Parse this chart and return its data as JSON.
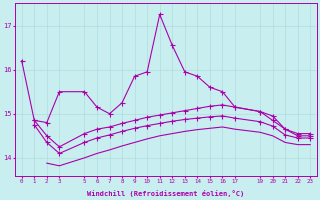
{
  "xlabel": "Windchill (Refroidissement éolien,°C)",
  "bg_color": "#c8eef0",
  "line_color": "#aa00aa",
  "grid_color": "#b0dde0",
  "xlim": [
    -0.5,
    23.5
  ],
  "ylim": [
    13.6,
    17.5
  ],
  "yticks": [
    14,
    15,
    16,
    17
  ],
  "xticks": [
    0,
    1,
    2,
    3,
    5,
    6,
    7,
    8,
    9,
    10,
    11,
    12,
    13,
    14,
    15,
    16,
    17,
    19,
    20,
    21,
    22,
    23
  ],
  "line1_x": [
    0,
    1,
    2,
    3,
    5,
    6,
    7,
    8,
    9,
    10,
    11,
    12,
    13,
    14,
    15,
    16,
    17,
    19,
    20,
    21,
    22,
    23
  ],
  "line1_y": [
    16.2,
    14.85,
    14.8,
    15.5,
    15.5,
    15.15,
    15.0,
    15.25,
    15.85,
    15.95,
    17.25,
    16.55,
    15.95,
    15.85,
    15.6,
    15.5,
    15.15,
    15.05,
    14.85,
    14.65,
    14.5,
    14.5
  ],
  "line2_x": [
    1,
    2,
    3,
    5,
    6,
    7,
    8,
    9,
    10,
    11,
    12,
    13,
    14,
    15,
    16,
    17,
    19,
    20,
    21,
    22,
    23
  ],
  "line2_y": [
    14.85,
    14.5,
    14.25,
    14.55,
    14.65,
    14.7,
    14.78,
    14.85,
    14.92,
    14.97,
    15.02,
    15.07,
    15.12,
    15.17,
    15.2,
    15.15,
    15.05,
    14.95,
    14.65,
    14.55,
    14.55
  ],
  "line3_x": [
    1,
    2,
    3,
    5,
    6,
    7,
    8,
    9,
    10,
    11,
    12,
    13,
    14,
    15,
    16,
    17,
    19,
    20,
    21,
    22,
    23
  ],
  "line3_y": [
    14.75,
    14.35,
    14.1,
    14.35,
    14.45,
    14.52,
    14.6,
    14.67,
    14.73,
    14.78,
    14.83,
    14.87,
    14.9,
    14.93,
    14.95,
    14.9,
    14.82,
    14.72,
    14.52,
    14.45,
    14.45
  ],
  "line4_x": [
    2,
    3,
    5,
    6,
    7,
    8,
    9,
    10,
    11,
    12,
    13,
    14,
    15,
    16,
    17,
    19,
    20,
    21,
    22,
    23
  ],
  "line4_y": [
    13.88,
    13.82,
    14.0,
    14.1,
    14.18,
    14.27,
    14.35,
    14.43,
    14.5,
    14.55,
    14.6,
    14.64,
    14.67,
    14.7,
    14.65,
    14.58,
    14.5,
    14.35,
    14.3,
    14.3
  ]
}
